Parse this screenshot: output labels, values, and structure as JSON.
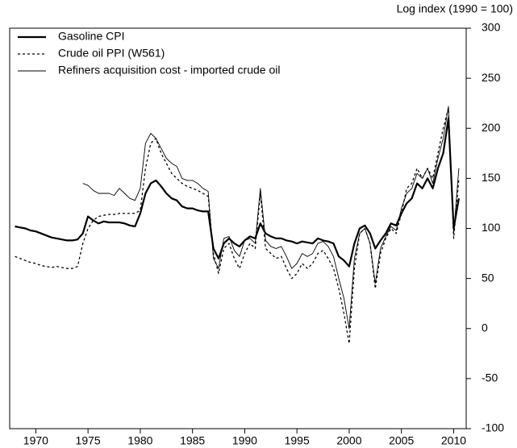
{
  "chart_data": {
    "type": "line",
    "y_axis_label": "Log index (1990 = 100)",
    "x": [
      1968,
      1968.5,
      1969,
      1969.5,
      1970,
      1970.5,
      1971,
      1971.5,
      1972,
      1972.5,
      1973,
      1973.5,
      1974,
      1974.5,
      1975,
      1975.5,
      1976,
      1976.5,
      1977,
      1977.5,
      1978,
      1978.5,
      1979,
      1979.5,
      1980,
      1980.5,
      1981,
      1981.5,
      1982,
      1982.5,
      1983,
      1983.5,
      1984,
      1984.5,
      1985,
      1985.5,
      1986,
      1986.5,
      1987,
      1987.5,
      1988,
      1988.5,
      1989,
      1989.5,
      1990,
      1990.5,
      1991,
      1991.5,
      1992,
      1992.5,
      1993,
      1993.5,
      1994,
      1994.5,
      1995,
      1995.5,
      1996,
      1996.5,
      1997,
      1997.5,
      1998,
      1998.5,
      1999,
      1999.5,
      2000,
      2000.5,
      2001,
      2001.5,
      2002,
      2002.5,
      2003,
      2003.5,
      2004,
      2004.5,
      2005,
      2005.5,
      2006,
      2006.5,
      2007,
      2007.5,
      2008,
      2008.5,
      2009,
      2009.5,
      2010,
      2010.5
    ],
    "series": [
      {
        "name": "Gasoline CPI",
        "color": "#000000",
        "width": 2.2,
        "dash": "none",
        "values": [
          102,
          101,
          100,
          98,
          97,
          95,
          93,
          91,
          90,
          89,
          88,
          88,
          89,
          95,
          112,
          108,
          105,
          107,
          106,
          106,
          106,
          105,
          103,
          102,
          115,
          135,
          145,
          148,
          142,
          135,
          130,
          128,
          122,
          120,
          120,
          118,
          117,
          117,
          80,
          70,
          85,
          90,
          85,
          82,
          88,
          92,
          90,
          105,
          95,
          92,
          90,
          90,
          88,
          87,
          85,
          87,
          86,
          85,
          90,
          88,
          87,
          85,
          72,
          68,
          62,
          85,
          100,
          103,
          95,
          80,
          88,
          95,
          105,
          103,
          115,
          125,
          130,
          145,
          140,
          150,
          140,
          160,
          175,
          210,
          100,
          130
        ]
      },
      {
        "name": "Crude oil PPI (W561)",
        "color": "#000000",
        "width": 1.3,
        "dash": "3,3",
        "values": [
          72,
          70,
          68,
          66,
          65,
          63,
          62,
          61,
          62,
          61,
          60,
          60,
          62,
          85,
          100,
          108,
          112,
          113,
          114,
          114,
          115,
          115,
          115,
          115,
          118,
          160,
          185,
          190,
          175,
          165,
          155,
          150,
          145,
          142,
          140,
          138,
          135,
          132,
          75,
          55,
          80,
          85,
          70,
          60,
          75,
          85,
          80,
          135,
          80,
          75,
          70,
          72,
          60,
          50,
          55,
          65,
          60,
          65,
          75,
          78,
          70,
          60,
          40,
          15,
          -15,
          60,
          95,
          100,
          85,
          40,
          75,
          90,
          100,
          95,
          115,
          140,
          145,
          160,
          150,
          160,
          150,
          175,
          200,
          220,
          90,
          150
        ]
      },
      {
        "name": "Refiners acquisition cost - imported crude oil",
        "color": "#000000",
        "width": 0.9,
        "dash": "none",
        "values": [
          null,
          null,
          null,
          null,
          null,
          null,
          null,
          null,
          null,
          null,
          null,
          null,
          null,
          145,
          143,
          138,
          135,
          135,
          135,
          133,
          140,
          135,
          130,
          128,
          140,
          185,
          195,
          190,
          180,
          170,
          165,
          162,
          150,
          148,
          148,
          145,
          140,
          137,
          70,
          60,
          90,
          92,
          78,
          72,
          88,
          90,
          85,
          140,
          88,
          82,
          80,
          82,
          72,
          60,
          65,
          75,
          72,
          75,
          85,
          87,
          82,
          72,
          50,
          30,
          0,
          70,
          95,
          100,
          85,
          45,
          80,
          92,
          102,
          98,
          120,
          135,
          140,
          155,
          150,
          160,
          145,
          170,
          190,
          222,
          95,
          160
        ]
      }
    ],
    "xlim": [
      1967.5,
      2011.2
    ],
    "xticks": [
      1970,
      1975,
      1980,
      1985,
      1990,
      1995,
      2000,
      2005,
      2010
    ],
    "ylim": [
      -100,
      300
    ],
    "yticks": [
      -100,
      -50,
      0,
      50,
      100,
      150,
      200,
      250,
      300
    ],
    "y_axis_side": "right",
    "legend": "upper left",
    "grid": false
  }
}
